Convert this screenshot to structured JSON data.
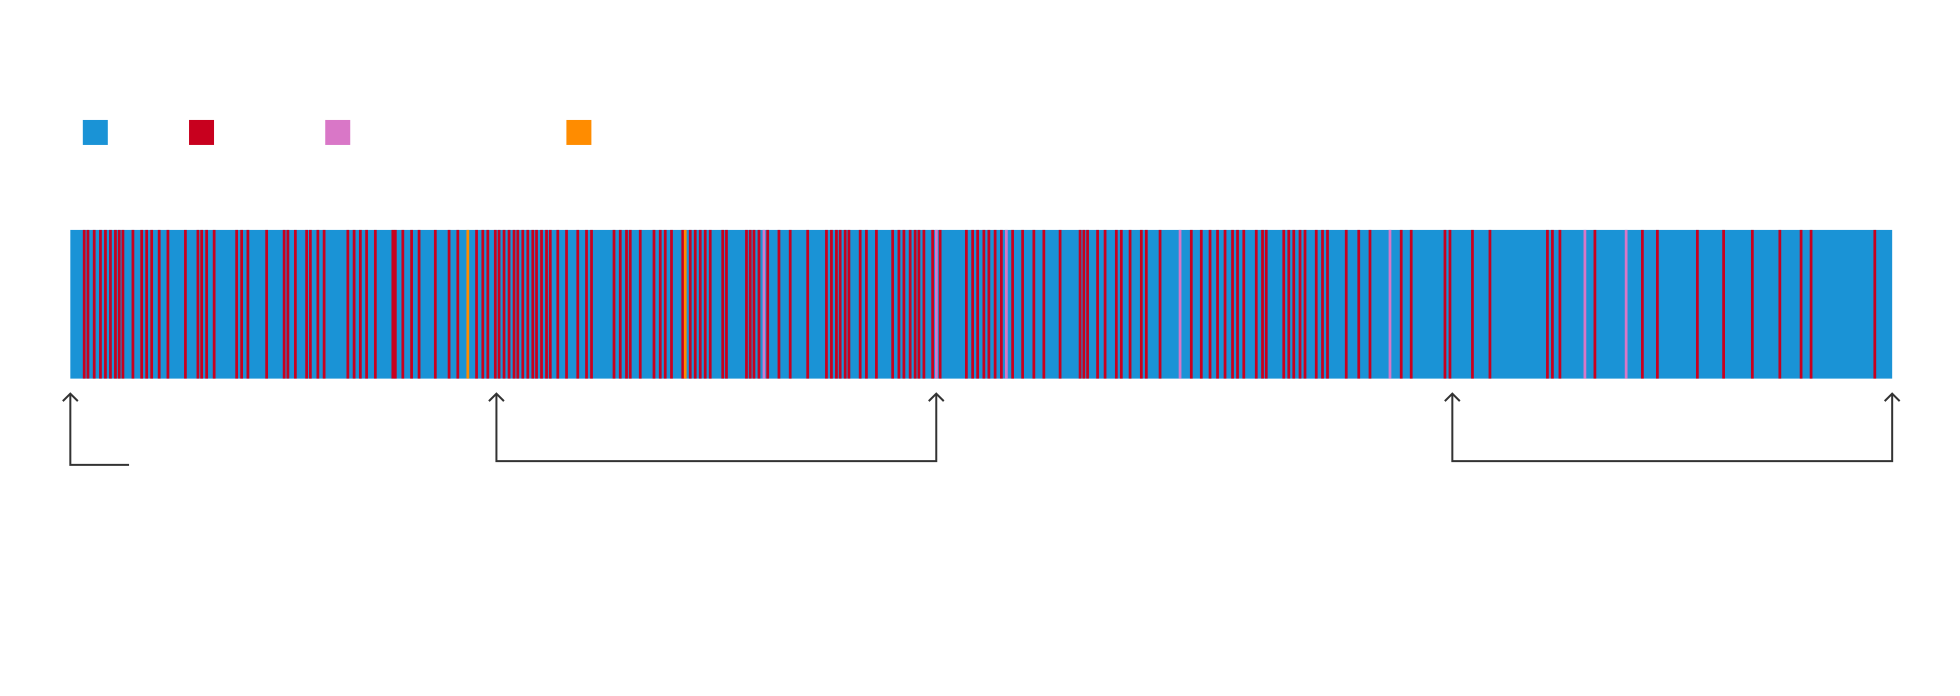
{
  "chart_data": {
    "type": "stripes",
    "xlim": [
      0,
      1458
    ],
    "series": [
      {
        "color": "#1a93d6",
        "x": []
      },
      {
        "color": "#c8001e",
        "x": [
          11,
          14,
          19,
          24,
          28,
          32,
          36,
          39,
          42,
          50,
          57,
          61,
          65,
          71,
          78,
          92,
          102,
          105,
          109,
          115,
          133,
          137,
          142,
          157,
          171,
          174,
          180,
          189,
          192,
          198,
          203,
          222,
          227,
          232,
          237,
          244,
          258,
          260,
          266,
          273,
          279,
          292,
          303,
          310,
          325,
          330,
          334,
          340,
          343,
          347,
          351,
          355,
          358,
          362,
          366,
          370,
          373,
          377,
          381,
          384,
          390,
          397,
          406,
          413,
          417,
          435,
          440,
          445,
          448,
          456,
          467,
          472,
          476,
          481,
          490,
          496,
          500,
          504,
          508,
          512,
          522,
          525,
          541,
          544,
          547,
          551,
          558,
          567,
          576,
          590,
          605,
          609,
          613,
          616,
          620,
          623,
          632,
          637,
          645,
          658,
          663,
          667,
          672,
          676,
          679,
          683,
          690,
          696,
          717,
          722,
          726,
          731,
          735,
          740,
          745,
          754,
          762,
          771,
          779,
          792,
          808,
          811,
          814,
          822,
          828,
          837,
          841,
          848,
          857,
          861,
          872,
          897,
          905,
          912,
          918,
          924,
          930,
          934,
          939,
          949,
          954,
          957,
          971,
          975,
          979,
          984,
          988,
          997,
          1002,
          1006,
          1021,
          1031,
          1040,
          1065,
          1073,
          1100,
          1104,
          1122,
          1136,
          1182,
          1186,
          1192,
          1220,
          1258,
          1270,
          1302,
          1323,
          1346,
          1368,
          1385,
          1393,
          1444
        ]
      },
      {
        "color": "#d977c7",
        "x": [
          555,
          693,
          749,
          888,
          1056,
          1212,
          1245
        ]
      },
      {
        "color": "#ff8c00",
        "x": [
          318,
          492
        ]
      }
    ]
  }
}
